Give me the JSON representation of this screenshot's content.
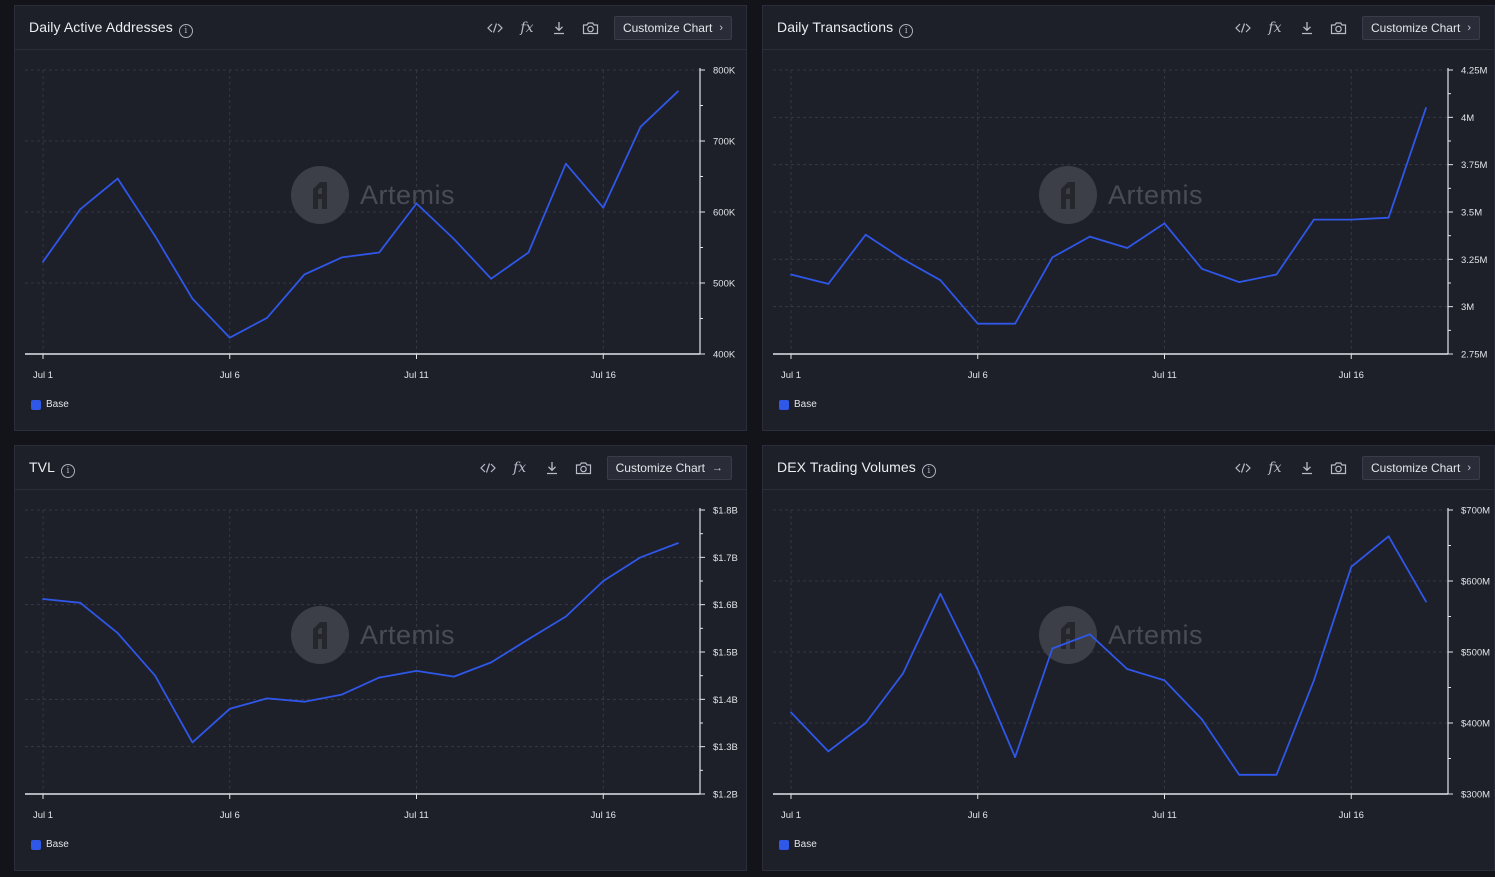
{
  "panels": [
    {
      "title": "Daily Active Addresses",
      "customize_label": "Customize Chart",
      "customize_arrow": "›",
      "legend_label": "Base",
      "watermark": "Artemis",
      "chart_data": {
        "type": "line",
        "x": [
          "Jul 1",
          "Jul 2",
          "Jul 3",
          "Jul 4",
          "Jul 5",
          "Jul 6",
          "Jul 7",
          "Jul 8",
          "Jul 9",
          "Jul 10",
          "Jul 11",
          "Jul 12",
          "Jul 13",
          "Jul 14",
          "Jul 15",
          "Jul 16",
          "Jul 17",
          "Jul 18"
        ],
        "series": [
          {
            "name": "Base",
            "color": "#2f57e8",
            "values": [
              530000,
              604000,
              647000,
              566000,
              478000,
              423000,
              451000,
              512000,
              536000,
              543000,
              612000,
              562000,
              506000,
              543000,
              668000,
              606000,
              720000,
              770000
            ]
          }
        ],
        "xticks": [
          "Jul 1",
          "Jul 6",
          "Jul 11",
          "Jul 16"
        ],
        "yticks": [
          400000,
          500000,
          600000,
          700000,
          800000
        ],
        "ytick_labels": [
          "400K",
          "500K",
          "600K",
          "700K",
          "800K"
        ],
        "ylim": [
          400000,
          800000
        ],
        "grid": true,
        "y_axis": "right"
      }
    },
    {
      "title": "Daily Transactions",
      "customize_label": "Customize Chart",
      "customize_arrow": "›",
      "legend_label": "Base",
      "watermark": "Artemis",
      "chart_data": {
        "type": "line",
        "x": [
          "Jul 1",
          "Jul 2",
          "Jul 3",
          "Jul 4",
          "Jul 5",
          "Jul 6",
          "Jul 7",
          "Jul 8",
          "Jul 9",
          "Jul 10",
          "Jul 11",
          "Jul 12",
          "Jul 13",
          "Jul 14",
          "Jul 15",
          "Jul 16",
          "Jul 17",
          "Jul 18"
        ],
        "series": [
          {
            "name": "Base",
            "color": "#2f57e8",
            "values": [
              3170000,
              3120000,
              3380000,
              3250000,
              3140000,
              2910000,
              2910000,
              3260000,
              3370000,
              3310000,
              3440000,
              3200000,
              3130000,
              3170000,
              3460000,
              3460000,
              3470000,
              4050000
            ]
          }
        ],
        "xticks": [
          "Jul 1",
          "Jul 6",
          "Jul 11",
          "Jul 16"
        ],
        "yticks": [
          2750000,
          3000000,
          3250000,
          3500000,
          3750000,
          4000000,
          4250000
        ],
        "ytick_labels": [
          "2.75M",
          "3M",
          "3.25M",
          "3.5M",
          "3.75M",
          "4M",
          "4.25M"
        ],
        "ylim": [
          2750000,
          4250000
        ],
        "grid": true,
        "y_axis": "right"
      }
    },
    {
      "title": "TVL",
      "customize_label": "Customize Chart",
      "customize_arrow": "→",
      "legend_label": "Base",
      "watermark": "Artemis",
      "chart_data": {
        "type": "line",
        "x": [
          "Jul 1",
          "Jul 2",
          "Jul 3",
          "Jul 4",
          "Jul 5",
          "Jul 6",
          "Jul 7",
          "Jul 8",
          "Jul 9",
          "Jul 10",
          "Jul 11",
          "Jul 12",
          "Jul 13",
          "Jul 14",
          "Jul 15",
          "Jul 16",
          "Jul 17",
          "Jul 18"
        ],
        "series": [
          {
            "name": "Base",
            "color": "#2f57e8",
            "values": [
              1.612,
              1.604,
              1.54,
              1.45,
              1.309,
              1.38,
              1.402,
              1.395,
              1.41,
              1.446,
              1.46,
              1.448,
              1.478,
              1.527,
              1.575,
              1.65,
              1.7,
              1.73
            ]
          }
        ],
        "xticks": [
          "Jul 1",
          "Jul 6",
          "Jul 11",
          "Jul 16"
        ],
        "yticks": [
          1.2,
          1.3,
          1.4,
          1.5,
          1.6,
          1.7,
          1.8
        ],
        "ytick_labels": [
          "$1.2B",
          "$1.3B",
          "$1.4B",
          "$1.5B",
          "$1.6B",
          "$1.7B",
          "$1.8B"
        ],
        "ylim": [
          1.2,
          1.8
        ],
        "yunit": "$B",
        "grid": true,
        "y_axis": "right"
      }
    },
    {
      "title": "DEX Trading Volumes",
      "customize_label": "Customize Chart",
      "customize_arrow": "›",
      "legend_label": "Base",
      "watermark": "Artemis",
      "chart_data": {
        "type": "line",
        "x": [
          "Jul 1",
          "Jul 2",
          "Jul 3",
          "Jul 4",
          "Jul 5",
          "Jul 6",
          "Jul 7",
          "Jul 8",
          "Jul 9",
          "Jul 10",
          "Jul 11",
          "Jul 12",
          "Jul 13",
          "Jul 14",
          "Jul 15",
          "Jul 16",
          "Jul 17",
          "Jul 18"
        ],
        "series": [
          {
            "name": "Base",
            "color": "#2f57e8",
            "values": [
              415,
              360,
              400,
              470,
              582,
              475,
              352,
              505,
              525,
              476,
              460,
              405,
              327,
              327,
              460,
              620,
              663,
              571
            ]
          }
        ],
        "xticks": [
          "Jul 1",
          "Jul 6",
          "Jul 11",
          "Jul 16"
        ],
        "yticks": [
          300,
          400,
          500,
          600,
          700
        ],
        "ytick_labels": [
          "$300M",
          "$400M",
          "$500M",
          "$600M",
          "$700M"
        ],
        "ylim": [
          300,
          700
        ],
        "yunit": "$M",
        "grid": true,
        "y_axis": "right"
      }
    }
  ]
}
